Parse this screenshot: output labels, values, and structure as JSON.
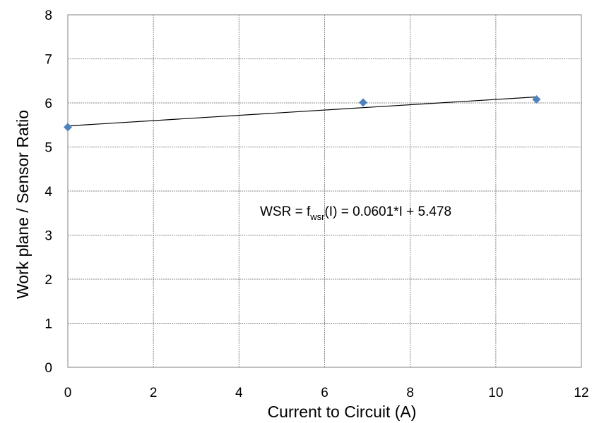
{
  "chart_data": {
    "type": "scatter",
    "xlabel": "Current to Circuit (A)",
    "ylabel": "Work plane / Sensor Ratio",
    "xlim": [
      0,
      12
    ],
    "ylim": [
      0,
      8
    ],
    "x_ticks": [
      "0",
      "2",
      "4",
      "6",
      "8",
      "10",
      "12"
    ],
    "y_ticks": [
      "0",
      "1",
      "2",
      "3",
      "4",
      "5",
      "6",
      "7",
      "8"
    ],
    "grid": true,
    "marker_color": "#4F81BD",
    "series": [
      {
        "x": [
          0,
          6.9,
          10.95
        ],
        "y": [
          5.45,
          6.01,
          6.08
        ]
      }
    ],
    "trendline": {
      "slope": 0.0601,
      "intercept": 5.478,
      "x_range": [
        0,
        10.95
      ],
      "color": "#000000"
    },
    "equation": {
      "prefix": "WSR = f",
      "subscript": "wsr",
      "suffix": "(I) = 0.0601*I + 5.478"
    }
  }
}
